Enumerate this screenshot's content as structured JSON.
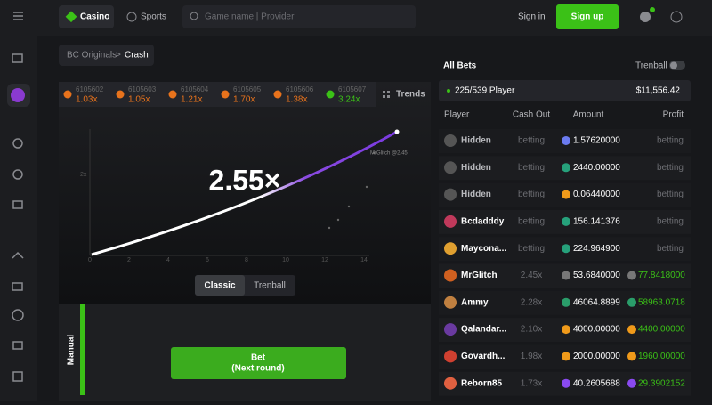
{
  "nav": {
    "casino": "Casino",
    "sports": "Sports",
    "search": "Game name | Provider",
    "sign_in": "Sign in",
    "sign_up": "Sign up"
  },
  "breadcrumb": {
    "parent": "BC Originals",
    "separator": ">",
    "current": "Crash"
  },
  "history": {
    "trends": "Trends",
    "rounds": [
      {
        "id": "6105602",
        "multiplier": "1.03x",
        "color": "#e8731c"
      },
      {
        "id": "6105603",
        "multiplier": "1.05x",
        "color": "#e8731c"
      },
      {
        "id": "6105604",
        "multiplier": "1.21x",
        "color": "#e8731c"
      },
      {
        "id": "6105605",
        "multiplier": "1.70x",
        "color": "#e8731c"
      },
      {
        "id": "6105606",
        "multiplier": "1.38x",
        "color": "#e8731c"
      },
      {
        "id": "6105607",
        "multiplier": "3.24x",
        "color": "#3bc117"
      }
    ]
  },
  "game": {
    "multiplier": "2.55×",
    "y_label": "2x",
    "x_labels": [
      "0",
      "2",
      "4",
      "6",
      "8",
      "10",
      "12",
      "14"
    ],
    "curve_label": "MrGlitch @2.45",
    "tabs": [
      "Classic",
      "Trenball"
    ],
    "mode": "Manual",
    "bet": "Bet",
    "bet_note": "(Next round)"
  },
  "bets": {
    "title": "All Bets",
    "toggle": "Trenball",
    "players": "225/539 Player",
    "total": "$11,556.42",
    "columns": [
      "Player",
      "Cash Out",
      "Amount",
      "Profit"
    ],
    "rows": [
      {
        "player": "Hidden",
        "avatar": "#555",
        "cash_out": "betting",
        "amount": "1.57620000",
        "coin": "#6b7bf0",
        "profit": "betting"
      },
      {
        "player": "Hidden",
        "avatar": "#555",
        "cash_out": "betting",
        "amount": "2440.00000",
        "coin": "#26a17b",
        "profit": "betting"
      },
      {
        "player": "Hidden",
        "avatar": "#555",
        "cash_out": "betting",
        "amount": "0.06440000",
        "coin": "#f09a1a",
        "profit": "betting"
      },
      {
        "player": "Bcdadddy",
        "avatar": "#c0395b",
        "cash_out": "betting",
        "amount": "156.141376",
        "coin": "#26a17b",
        "profit": "betting"
      },
      {
        "player": "Maycona...",
        "avatar": "#e0a030",
        "cash_out": "betting",
        "amount": "224.964900",
        "coin": "#26a17b",
        "profit": "betting"
      },
      {
        "player": "MrGlitch",
        "avatar": "#d06020",
        "cash_out": "2.45x",
        "amount": "53.6840000",
        "coin": "#777",
        "profit": "77.8418000",
        "profit_coin": "#777"
      },
      {
        "player": "Ammy",
        "avatar": "#c08040",
        "cash_out": "2.28x",
        "amount": "46064.8899",
        "coin": "#2a9d6a",
        "profit": "58963.0718",
        "profit_coin": "#2a9d6a"
      },
      {
        "player": "Qalandar...",
        "avatar": "#6a3aa0",
        "cash_out": "2.10x",
        "amount": "4000.00000",
        "coin": "#f09a1a",
        "profit": "4400.00000",
        "profit_coin": "#f09a1a"
      },
      {
        "player": "Govardh...",
        "avatar": "#d04030",
        "cash_out": "1.98x",
        "amount": "2000.00000",
        "coin": "#f09a1a",
        "profit": "1960.00000",
        "profit_coin": "#f09a1a"
      },
      {
        "player": "Reborn85",
        "avatar": "#e06040",
        "cash_out": "1.73x",
        "amount": "40.2605688",
        "coin": "#8a4af0",
        "profit": "29.3902152",
        "profit_coin": "#8a4af0"
      }
    ]
  }
}
